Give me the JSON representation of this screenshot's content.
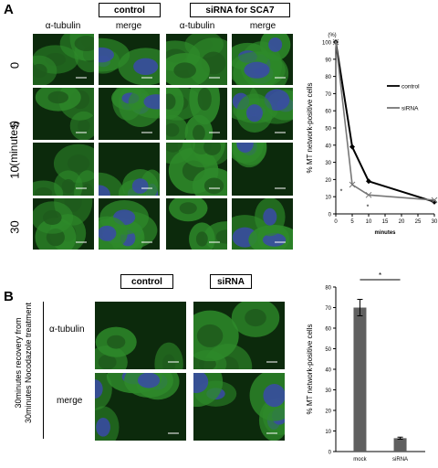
{
  "panelA": {
    "letter": "A",
    "header_control": "control",
    "header_sirna": "siRNA for SCA7",
    "col_labels": [
      "α-tubulin",
      "merge",
      "α-tubulin",
      "merge"
    ],
    "time_labels": [
      "0",
      "5",
      "10",
      "30"
    ],
    "time_unit": "(minutes)",
    "colors": {
      "tubulin": "#2e8a2a",
      "nucleus": "#3a4aa8",
      "background": "#0c2a0c"
    }
  },
  "panelB": {
    "letter": "B",
    "header_control": "control",
    "header_sirna": "siRNA",
    "row_labels": [
      "α-tubulin",
      "merge"
    ],
    "side_label_line1": "30minutes recovery from",
    "side_label_line2": "30minutes Nocodazole treatment"
  },
  "chart_data": [
    {
      "type": "line",
      "ylabel": "% MT network-positive cells",
      "xlabel": "minutes",
      "y_unit": "(%)",
      "x": [
        0,
        5,
        10,
        30
      ],
      "xlim": [
        0,
        30
      ],
      "ylim": [
        0,
        100
      ],
      "xticks": [
        "0",
        "5",
        "10",
        "15",
        "20",
        "25",
        "30"
      ],
      "yticks": [
        "0",
        "10",
        "20",
        "30",
        "40",
        "50",
        "60",
        "70",
        "80",
        "90",
        "100"
      ],
      "series": [
        {
          "name": "control",
          "values": [
            100,
            39,
            19,
            7
          ],
          "color": "#000000"
        },
        {
          "name": "siRNA",
          "values": [
            100,
            17,
            11,
            8
          ],
          "color": "#777777"
        }
      ],
      "annotations": [
        "*",
        "*"
      ],
      "legend": "right"
    },
    {
      "type": "bar",
      "ylabel": "% MT network-positive cells",
      "categories": [
        "mock",
        "siRNA"
      ],
      "values": [
        70,
        6.5
      ],
      "errors": [
        4,
        0.5
      ],
      "ylim": [
        0,
        80
      ],
      "yticks": [
        "0",
        "10",
        "20",
        "30",
        "40",
        "50",
        "60",
        "70",
        "80"
      ],
      "color": "#606060",
      "annotation": "*"
    }
  ]
}
